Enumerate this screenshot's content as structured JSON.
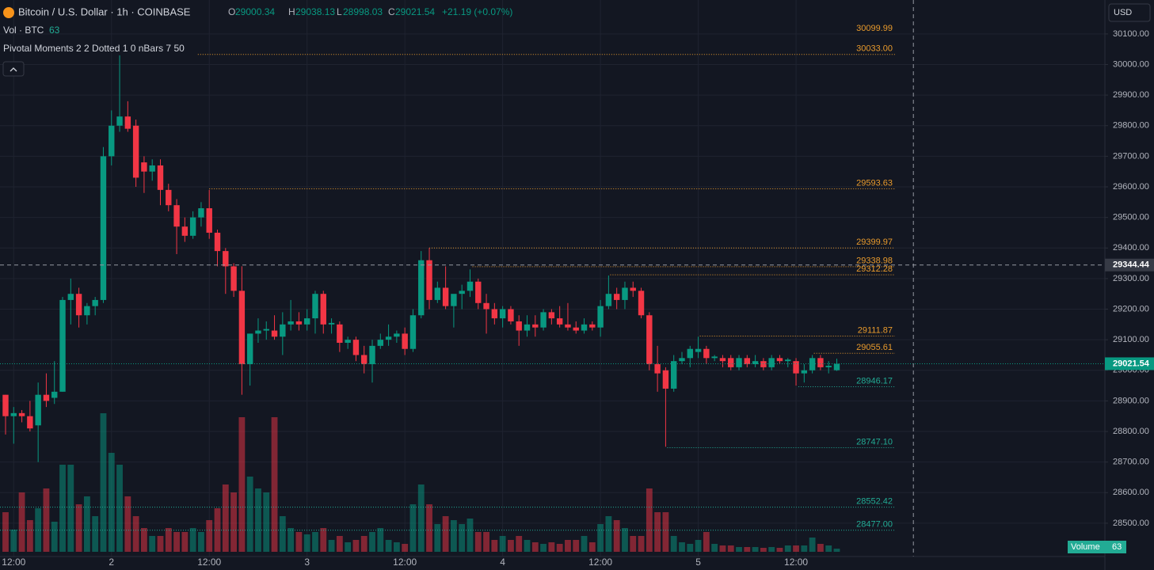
{
  "chart_data": {
    "type": "candlestick",
    "title": "Bitcoin / U.S. Dollar · 1h · COINBASE",
    "ohlc_header": {
      "O": "O",
      "open": 29000.34,
      "H": "H",
      "high": 29038.13,
      "L": "L",
      "low": 28998.03,
      "C": "C",
      "close": 29021.54,
      "change": "+21.19 (+0.07%)"
    },
    "volume_legend": "Vol · BTC",
    "indicator": "Pivotal Moments 2 2 Dotted 1 0 nBars 7 50",
    "currency": "USD",
    "volume_label": "Volume",
    "colors": {
      "up": "#089981",
      "down": "#f23645",
      "pivot_high": "#e89a2c",
      "pivot_low": "#22ab94"
    },
    "ylim": [
      28391,
      30211
    ],
    "xlim": [
      -0.68,
      134.9
    ],
    "yticks": [
      {
        "value": 28500,
        "label": "28500.00"
      },
      {
        "value": 28600,
        "label": "28600.00"
      },
      {
        "value": 28700,
        "label": "28700.00"
      },
      {
        "value": 28800,
        "label": "28800.00"
      },
      {
        "value": 28900,
        "label": "28900.00"
      },
      {
        "value": 29000,
        "label": "29000.00"
      },
      {
        "value": 29100,
        "label": "29100.00"
      },
      {
        "value": 29200,
        "label": "29200.00"
      },
      {
        "value": 29300,
        "label": "29300.00"
      },
      {
        "value": 29400,
        "label": "29400.00"
      },
      {
        "value": 29500,
        "label": "29500.00"
      },
      {
        "value": 29600,
        "label": "29600.00"
      },
      {
        "value": 29700,
        "label": "29700.00"
      },
      {
        "value": 29800,
        "label": "29800.00"
      },
      {
        "value": 29900,
        "label": "29900.00"
      },
      {
        "value": 30000,
        "label": "30000.00"
      },
      {
        "value": 30100,
        "label": "30100.00"
      }
    ],
    "xticks": [
      {
        "value": 1,
        "label": "12:00"
      },
      {
        "value": 13,
        "label": "2"
      },
      {
        "value": 25,
        "label": "12:00"
      },
      {
        "value": 37,
        "label": "3"
      },
      {
        "value": 49,
        "label": "12:00"
      },
      {
        "value": 61,
        "label": "4"
      },
      {
        "value": 73,
        "label": "12:00"
      },
      {
        "value": 85,
        "label": "5"
      },
      {
        "value": 97,
        "label": "12:00"
      }
    ],
    "grid": true,
    "candles": [
      [
        28920,
        28920,
        28790,
        28850
      ],
      [
        28850,
        28880,
        28760,
        28860
      ],
      [
        28860,
        28870,
        28830,
        28850
      ],
      [
        28850,
        28900,
        28800,
        28810
      ],
      [
        28820,
        28960,
        28700,
        28920
      ],
      [
        28920,
        28990,
        28880,
        28900
      ],
      [
        28910,
        29030,
        28890,
        28930
      ],
      [
        28930,
        29240,
        28930,
        29230
      ],
      [
        29230,
        29300,
        29150,
        29250
      ],
      [
        29250,
        29270,
        29140,
        29180
      ],
      [
        29180,
        29220,
        29150,
        29210
      ],
      [
        29210,
        29240,
        29180,
        29230
      ],
      [
        29230,
        29730,
        29220,
        29700
      ],
      [
        29700,
        29850,
        29670,
        29800
      ],
      [
        29800,
        30030,
        29780,
        29830
      ],
      [
        29830,
        29880,
        29780,
        29790
      ],
      [
        29800,
        29820,
        29600,
        29630
      ],
      [
        29680,
        29700,
        29580,
        29650
      ],
      [
        29650,
        29690,
        29620,
        29670
      ],
      [
        29670,
        29690,
        29540,
        29590
      ],
      [
        29590,
        29610,
        29520,
        29540
      ],
      [
        29540,
        29560,
        29380,
        29470
      ],
      [
        29470,
        29500,
        29420,
        29440
      ],
      [
        29440,
        29520,
        29430,
        29500
      ],
      [
        29500,
        29550,
        29470,
        29530
      ],
      [
        29530,
        29590,
        29430,
        29450
      ],
      [
        29450,
        29460,
        29340,
        29390
      ],
      [
        29390,
        29400,
        29250,
        29340
      ],
      [
        29340,
        29350,
        29240,
        29260
      ],
      [
        29260,
        29340,
        28920,
        29020
      ],
      [
        29020,
        29120,
        28950,
        29120
      ],
      [
        29120,
        29170,
        29090,
        29130
      ],
      [
        29130,
        29160,
        29100,
        29135
      ],
      [
        29130,
        29180,
        29100,
        29110
      ],
      [
        29110,
        29190,
        29050,
        29150
      ],
      [
        29150,
        29230,
        29130,
        29160
      ],
      [
        29160,
        29190,
        29130,
        29150
      ],
      [
        29150,
        29200,
        29130,
        29170
      ],
      [
        29170,
        29260,
        29120,
        29250
      ],
      [
        29250,
        29260,
        29120,
        29150
      ],
      [
        29150,
        29170,
        29120,
        29155
      ],
      [
        29150,
        29160,
        29060,
        29090
      ],
      [
        29090,
        29110,
        29070,
        29100
      ],
      [
        29100,
        29110,
        29030,
        29050
      ],
      [
        29050,
        29080,
        28990,
        29020
      ],
      [
        29020,
        29100,
        28960,
        29080
      ],
      [
        29080,
        29120,
        29070,
        29100
      ],
      [
        29100,
        29150,
        29080,
        29110
      ],
      [
        29110,
        29130,
        29090,
        29120
      ],
      [
        29120,
        29140,
        29050,
        29070
      ],
      [
        29070,
        29200,
        29060,
        29180
      ],
      [
        29180,
        29390,
        29170,
        29360
      ],
      [
        29360,
        29400,
        29200,
        29230
      ],
      [
        29230,
        29290,
        29220,
        29270
      ],
      [
        29270,
        29340,
        29200,
        29210
      ],
      [
        29210,
        29240,
        29140,
        29250
      ],
      [
        29250,
        29280,
        29200,
        29260
      ],
      [
        29260,
        29330,
        29240,
        29290
      ],
      [
        29290,
        29300,
        29200,
        29220
      ],
      [
        29220,
        29250,
        29120,
        29200
      ],
      [
        29200,
        29220,
        29150,
        29170
      ],
      [
        29170,
        29210,
        29140,
        29200
      ],
      [
        29200,
        29210,
        29150,
        29160
      ],
      [
        29160,
        29180,
        29080,
        29130
      ],
      [
        29130,
        29180,
        29110,
        29150
      ],
      [
        29150,
        29180,
        29110,
        29140
      ],
      [
        29140,
        29200,
        29130,
        29190
      ],
      [
        29190,
        29200,
        29150,
        29170
      ],
      [
        29170,
        29210,
        29140,
        29150
      ],
      [
        29150,
        29220,
        29130,
        29140
      ],
      [
        29140,
        29160,
        29120,
        29130
      ],
      [
        29130,
        29170,
        29120,
        29150
      ],
      [
        29150,
        29160,
        29130,
        29140
      ],
      [
        29140,
        29230,
        29110,
        29210
      ],
      [
        29210,
        29310,
        29200,
        29250
      ],
      [
        29250,
        29270,
        29200,
        29230
      ],
      [
        29230,
        29290,
        29200,
        29270
      ],
      [
        29270,
        29290,
        29240,
        29260
      ],
      [
        29260,
        29270,
        29170,
        29180
      ],
      [
        29180,
        29190,
        29000,
        29020
      ],
      [
        29020,
        29080,
        28930,
        28990
      ],
      [
        29000,
        29010,
        28750,
        28940
      ],
      [
        28940,
        29050,
        28930,
        29030
      ],
      [
        29030,
        29060,
        29020,
        29040
      ],
      [
        29040,
        29080,
        29010,
        29070
      ],
      [
        29060,
        29110,
        29040,
        29070
      ],
      [
        29070,
        29080,
        29020,
        29040
      ],
      [
        29040,
        29050,
        29030,
        29045
      ],
      [
        29040,
        29050,
        29010,
        29030
      ],
      [
        29040,
        29050,
        29000,
        29010
      ],
      [
        29010,
        29050,
        29000,
        29040
      ],
      [
        29040,
        29050,
        29010,
        29020
      ],
      [
        29020,
        29050,
        29010,
        29030
      ],
      [
        29030,
        29040,
        29000,
        29010
      ],
      [
        29010,
        29050,
        29000,
        29040
      ],
      [
        29040,
        29050,
        29020,
        29030
      ],
      [
        29030,
        29040,
        29010,
        29035
      ],
      [
        29030,
        29040,
        28950,
        28990
      ],
      [
        28990,
        29020,
        28960,
        29000
      ],
      [
        29000,
        29050,
        28990,
        29040
      ],
      [
        29040,
        29050,
        29000,
        29010
      ],
      [
        29010,
        29030,
        28990,
        29015
      ],
      [
        29000.34,
        29038.13,
        28998.03,
        29021.54
      ]
    ],
    "volumes": [
      800,
      448,
      1200,
      640,
      880,
      1280,
      608,
      1760,
      1760,
      960,
      1120,
      720,
      2800,
      2000,
      1760,
      1120,
      720,
      480,
      320,
      320,
      480,
      400,
      400,
      480,
      400,
      640,
      880,
      1360,
      1200,
      2720,
      1520,
      1280,
      1200,
      2720,
      720,
      480,
      400,
      352,
      400,
      480,
      240,
      320,
      192,
      240,
      320,
      400,
      480,
      240,
      192,
      160,
      960,
      1360,
      960,
      560,
      720,
      640,
      560,
      672,
      400,
      400,
      240,
      320,
      240,
      320,
      240,
      192,
      160,
      192,
      160,
      240,
      240,
      320,
      192,
      560,
      720,
      640,
      480,
      320,
      320,
      1280,
      800,
      800,
      320,
      192,
      160,
      240,
      400,
      160,
      128,
      128,
      96,
      96,
      96,
      80,
      96,
      80,
      128,
      128,
      128,
      288,
      160,
      128,
      63
    ],
    "levels": [
      {
        "price": 30099.99,
        "label": "30099.99",
        "kind": "pivot_high"
      },
      {
        "price": 30033.0,
        "label": "30033.00",
        "kind": "pivot_high",
        "from": 23.6
      },
      {
        "price": 29593.63,
        "label": "29593.63",
        "kind": "pivot_high",
        "from": 25
      },
      {
        "price": 29399.97,
        "label": "29399.97",
        "kind": "pivot_high",
        "from": 52
      },
      {
        "price": 29338.98,
        "label": "29338.98",
        "kind": "pivot_high",
        "from": 57.3
      },
      {
        "price": 29312.28,
        "label": "29312.28",
        "kind": "pivot_high",
        "from": 74.2
      },
      {
        "price": 29111.87,
        "label": "29111.87",
        "kind": "pivot_high",
        "from": 85.2
      },
      {
        "price": 29055.61,
        "label": "29055.61",
        "kind": "pivot_high",
        "from": 99.2
      },
      {
        "price": 28946.17,
        "label": "28946.17",
        "kind": "pivot_low",
        "from": 97.3
      },
      {
        "price": 28747.1,
        "label": "28747.10",
        "kind": "pivot_low",
        "from": 81.2
      },
      {
        "price": 28552.42,
        "label": "28552.42",
        "kind": "pivot_low",
        "from": -0.68
      },
      {
        "price": 28477.0,
        "label": "28477.00",
        "kind": "pivot_low",
        "from": -0.68
      }
    ],
    "crosshair": {
      "price": 29344.44,
      "x": 111.4
    }
  }
}
